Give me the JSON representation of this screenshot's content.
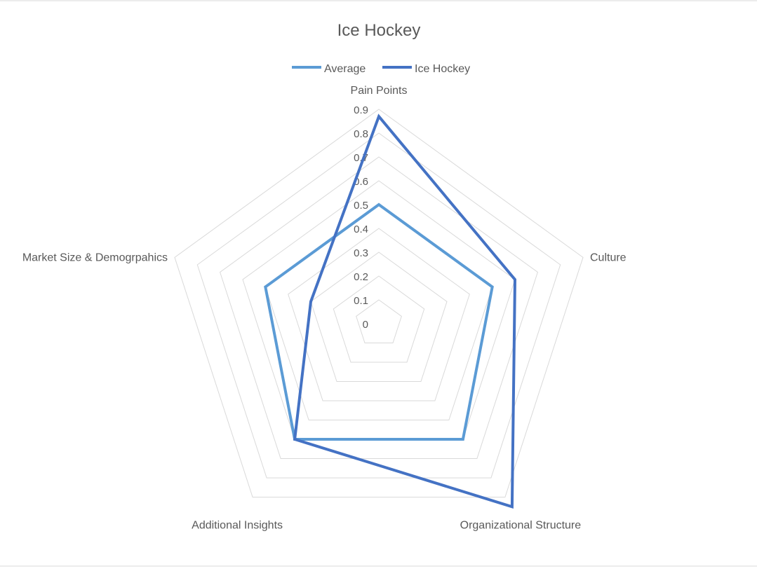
{
  "chart_data": {
    "type": "radar",
    "title": "Ice Hockey",
    "categories": [
      "Pain Points",
      "Culture",
      "Organizational Structure",
      "Additional Insights",
      "Market Size & Demogrpahics"
    ],
    "series": [
      {
        "name": "Average",
        "values": [
          0.5,
          0.5,
          0.6,
          0.6,
          0.5
        ],
        "color": "#5b9bd5"
      },
      {
        "name": "Ice Hockey",
        "values": [
          0.87,
          0.6,
          0.95,
          0.6,
          0.3
        ],
        "color": "#4472c4"
      }
    ],
    "rlim": [
      0,
      0.9
    ],
    "ticks": [
      "0",
      "0.1",
      "0.2",
      "0.3",
      "0.4",
      "0.5",
      "0.6",
      "0.7",
      "0.8",
      "0.9"
    ],
    "tick_values": [
      0,
      0.1,
      0.2,
      0.3,
      0.4,
      0.5,
      0.6,
      0.7,
      0.8,
      0.9
    ],
    "legend_position": "top",
    "grid": true,
    "grid_color": "#d9d9d9"
  }
}
